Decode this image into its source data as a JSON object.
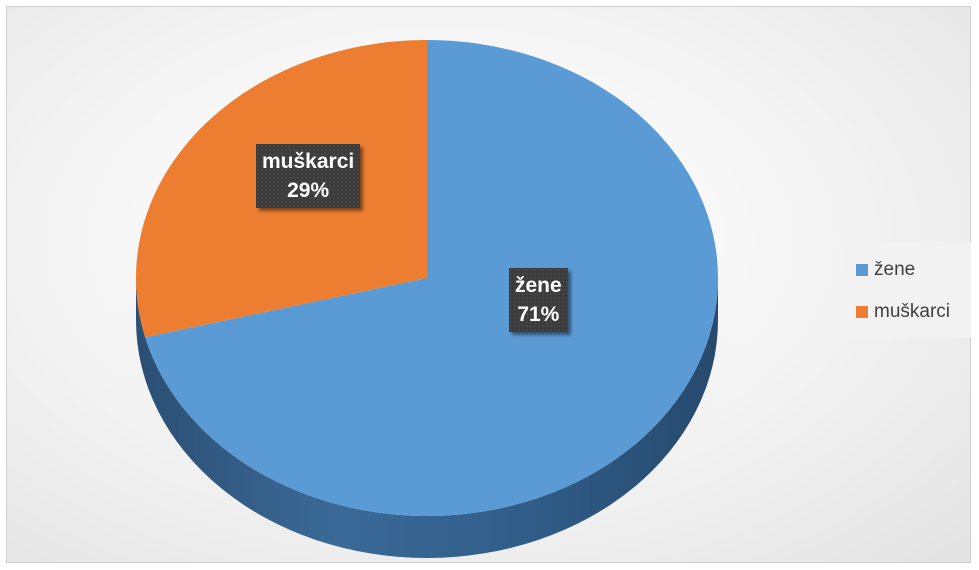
{
  "chart_data": {
    "type": "pie",
    "title": "",
    "categories": [
      "žene",
      "muškarci"
    ],
    "values": [
      71,
      29
    ],
    "data_labels": [
      {
        "category": "žene",
        "percent": "71%"
      },
      {
        "category": "muškarci",
        "percent": "29%"
      }
    ],
    "legend": {
      "placement": "right",
      "entries": [
        "žene",
        "muškarci"
      ]
    },
    "colors": {
      "žene": "#5b9bd5",
      "muškarci": "#ed7d31"
    }
  }
}
